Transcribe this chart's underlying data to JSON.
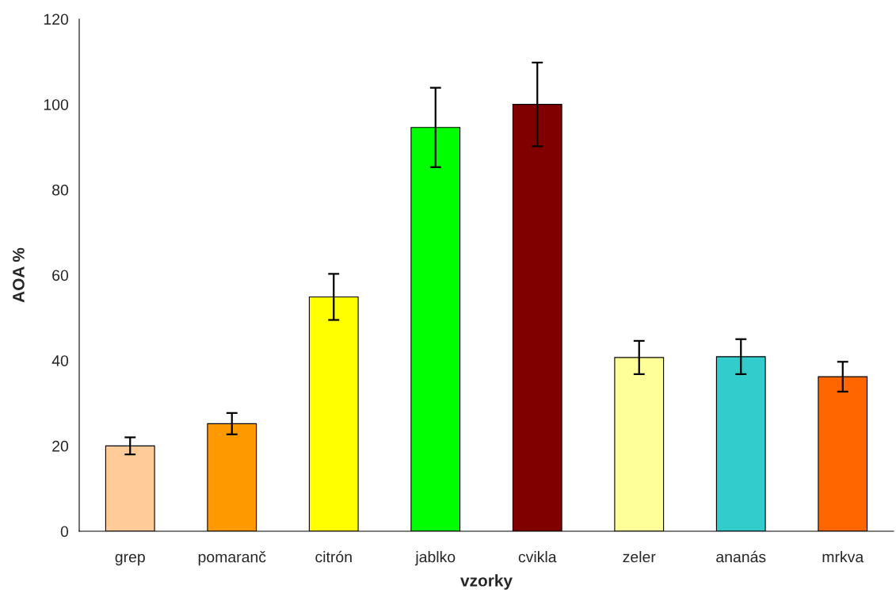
{
  "chart_data": {
    "type": "bar",
    "xlabel": "vzorky",
    "ylabel": "AOA %",
    "categories": [
      "grep",
      "pomaranč",
      "citrón",
      "jablko",
      "cvikla",
      "zeler",
      "ananás",
      "mrkva"
    ],
    "values": [
      20,
      25.2,
      54.9,
      94.6,
      100,
      40.7,
      40.9,
      36.2
    ],
    "errors": [
      2,
      2.5,
      5.4,
      9.3,
      9.8,
      3.9,
      4.1,
      3.5
    ],
    "colors": [
      "#ffcc99",
      "#ff9900",
      "#ffff00",
      "#00ff00",
      "#800000",
      "#ffff99",
      "#33cccc",
      "#ff6600"
    ],
    "ylim": [
      0,
      120
    ],
    "yticks": [
      0,
      20,
      40,
      60,
      80,
      100,
      120
    ],
    "grid": false,
    "legend": false
  }
}
